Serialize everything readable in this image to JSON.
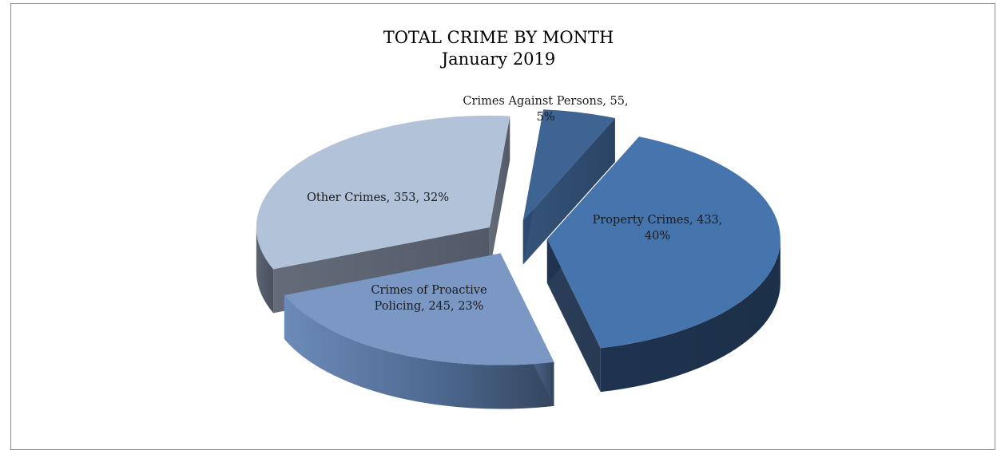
{
  "chart_data": {
    "type": "pie",
    "style": "3d-exploded",
    "title": "TOTAL CRIME BY MONTH",
    "subtitle": "January 2019",
    "slices": [
      {
        "category": "Crimes Against Persons",
        "value": 55,
        "percent": "5%",
        "color": "#3e6494",
        "label_lines": [
          "Crimes Against Persons, 55,",
          "5%"
        ]
      },
      {
        "category": "Property Crimes",
        "value": 433,
        "percent": "40%",
        "color": "#4674ad",
        "label_lines": [
          "Property Crimes, 433,",
          "40%"
        ]
      },
      {
        "category": "Crimes of Proactive Policing",
        "value": 245,
        "percent": "23%",
        "color": "#7b98c4",
        "label_lines": [
          "Crimes of Proactive",
          "Policing, 245, 23%"
        ]
      },
      {
        "category": "Other Crimes",
        "value": 353,
        "percent": "32%",
        "color": "#b2c2d9",
        "label_lines": [
          "Other Crimes, 353, 32%"
        ]
      }
    ],
    "legend": "none"
  }
}
